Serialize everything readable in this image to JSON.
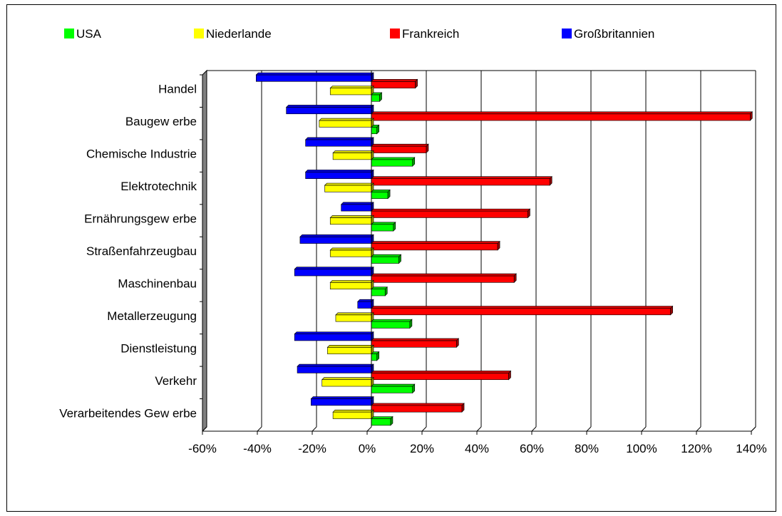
{
  "chart_data": {
    "type": "bar",
    "orientation": "horizontal",
    "categories": [
      "Handel",
      "Baugew erbe",
      "Chemische Industrie",
      "Elektrotechnik",
      "Ernährungsgew erbe",
      "Straßenfahrzeugbau",
      "Maschinenbau",
      "Metallerzeugung",
      "Dienstleistung",
      "Verkehr",
      "Verarbeitendes Gew erbe"
    ],
    "series": [
      {
        "name": "USA",
        "color": "#00ff00",
        "values": [
          3,
          2,
          15,
          6,
          8,
          10,
          5,
          14,
          2,
          15,
          7
        ]
      },
      {
        "name": "Niederlande",
        "color": "#ffff00",
        "values": [
          -15,
          -19,
          -14,
          -17,
          -15,
          -15,
          -15,
          -13,
          -16,
          -18,
          -14
        ]
      },
      {
        "name": "Frankreich",
        "color": "#ff0000",
        "values": [
          16,
          138,
          20,
          65,
          57,
          46,
          52,
          109,
          31,
          50,
          33
        ]
      },
      {
        "name": "Großbritannien",
        "color": "#0000ff",
        "values": [
          -42,
          -31,
          -24,
          -24,
          -11,
          -26,
          -28,
          -5,
          -28,
          -27,
          -22
        ]
      }
    ],
    "xlim": [
      -60,
      140
    ],
    "xticks": [
      "-60%",
      "-40%",
      "-20%",
      "0%",
      "20%",
      "40%",
      "60%",
      "80%",
      "100%",
      "120%",
      "140%"
    ],
    "grid": true,
    "legend_position": "top"
  }
}
